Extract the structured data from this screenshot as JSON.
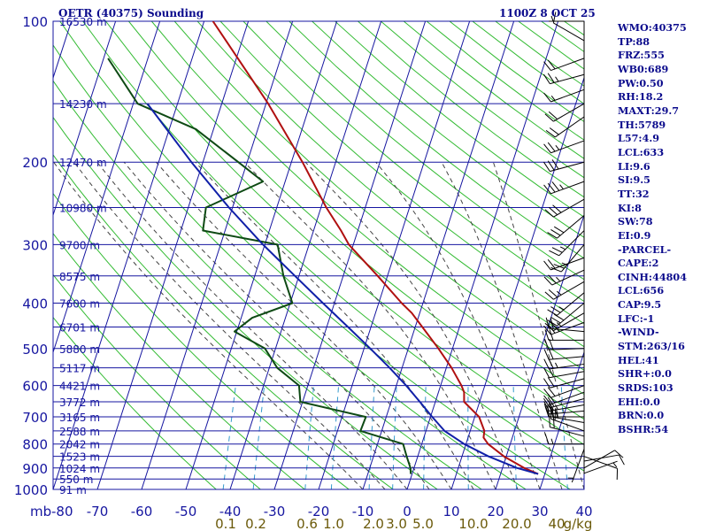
{
  "header": {
    "title": "OETR (40375) Sounding",
    "datetime": "1100Z  8 OCT 25"
  },
  "stats": [
    "WMO:40375",
    "TP:88",
    "FRZ:555",
    "WB0:689",
    "PW:0.50",
    "RH:18.2",
    "MAXT:29.7",
    "TH:5789",
    "L57:4.9",
    "LCL:633",
    "LI:9.6",
    "SI:9.5",
    "TT:32",
    "KI:8",
    "SW:78",
    "EI:0.9",
    "-PARCEL-",
    "CAPE:2",
    "CINH:44804",
    "LCL:656",
    "CAP:9.5",
    "LFC:-1",
    "-WIND-",
    "STM:263/16",
    "HEL:41",
    "SHR+:0.0",
    "SRDS:103",
    "EHI:0.0",
    "BRN:0.0",
    "BSHR:54"
  ],
  "colors": {
    "text": "#0a0a8c",
    "isobar": "#1616a0",
    "temperature": "#b01010",
    "dewpoint": "#0e4a14",
    "parcel": "#1020a8",
    "dry_adiabat": "#33bb33",
    "moist_adiabat": "#444444",
    "mixing_ratio": "#3399cc",
    "mixing_label": "#6b5a0a"
  },
  "chart_data": {
    "type": "skew-t",
    "title": "OETR (40375) Sounding",
    "pressure_unit": "mb",
    "temperature_unit": "C",
    "mixing_ratio_unit": "g/kg",
    "plim": [
      1000,
      100
    ],
    "tlim": [
      -80,
      40
    ],
    "pressure_levels": [
      100,
      200,
      300,
      400,
      500,
      600,
      700,
      800,
      900,
      1000
    ],
    "pressure_tick_labels": [
      "100",
      "200",
      "300",
      "400",
      "500",
      "600",
      "700",
      "800",
      "900",
      "1000"
    ],
    "temperature_ticks": [
      -80,
      -70,
      -60,
      -50,
      -40,
      -30,
      -20,
      -10,
      0,
      10,
      20,
      30,
      40
    ],
    "temperature_tick_labels": [
      "-80",
      "-70",
      "-60",
      "-50",
      "-40",
      "-30",
      "-20",
      "-10",
      "0",
      "10",
      "20",
      "30",
      "40"
    ],
    "x_axis_prefix": "mb",
    "height_labels": [
      {
        "p": 100,
        "text": "16530 m"
      },
      {
        "p": 150,
        "text": "14230 m"
      },
      {
        "p": 200,
        "text": "12470 m"
      },
      {
        "p": 250,
        "text": "10980 m"
      },
      {
        "p": 300,
        "text": "9700 m"
      },
      {
        "p": 350,
        "text": "8575 m"
      },
      {
        "p": 400,
        "text": "7600 m"
      },
      {
        "p": 450,
        "text": "6701 m"
      },
      {
        "p": 500,
        "text": "5880 m"
      },
      {
        "p": 550,
        "text": "5117 m"
      },
      {
        "p": 600,
        "text": "4421 m"
      },
      {
        "p": 650,
        "text": "3772 m"
      },
      {
        "p": 700,
        "text": "3165 m"
      },
      {
        "p": 750,
        "text": "2588 m"
      },
      {
        "p": 800,
        "text": "2042 m"
      },
      {
        "p": 850,
        "text": "1523 m"
      },
      {
        "p": 900,
        "text": "1024 m"
      },
      {
        "p": 950,
        "text": "550 m"
      },
      {
        "p": 1000,
        "text": "91 m"
      }
    ],
    "mixing_ratio_labels": [
      "0.1",
      "0.2",
      "0.6",
      "1.0",
      "2.0",
      "3.0",
      "5.0",
      "10.0",
      "20.0",
      "40",
      "g/kg"
    ],
    "mixing_ratios": [
      0.1,
      0.2,
      0.6,
      1.0,
      2.0,
      3.0,
      5.0,
      10.0,
      20.0,
      40.0
    ],
    "series": [
      {
        "name": "temperature",
        "points": [
          [
            927,
            28.5
          ],
          [
            900,
            24.9
          ],
          [
            850,
            19.5
          ],
          [
            800,
            15.0
          ],
          [
            775,
            13.5
          ],
          [
            750,
            13.2
          ],
          [
            700,
            11.0
          ],
          [
            650,
            6.5
          ],
          [
            620,
            5.8
          ],
          [
            600,
            4.7
          ],
          [
            550,
            1.2
          ],
          [
            500,
            -3.2
          ],
          [
            450,
            -8.4
          ],
          [
            420,
            -11.8
          ],
          [
            400,
            -14.8
          ],
          [
            350,
            -22.2
          ],
          [
            300,
            -31.0
          ],
          [
            280,
            -33.8
          ],
          [
            250,
            -38.8
          ],
          [
            200,
            -47.5
          ],
          [
            150,
            -59.5
          ],
          [
            100,
            -78.0
          ]
        ]
      },
      {
        "name": "dewpoint",
        "points": [
          [
            927,
            -0.3
          ],
          [
            900,
            -0.8
          ],
          [
            850,
            -2.5
          ],
          [
            800,
            -4.2
          ],
          [
            750,
            -14.8
          ],
          [
            700,
            -14.6
          ],
          [
            650,
            -30.5
          ],
          [
            600,
            -32.0
          ],
          [
            550,
            -38.2
          ],
          [
            500,
            -42.4
          ],
          [
            460,
            -50.5
          ],
          [
            430,
            -47.5
          ],
          [
            400,
            -39.5
          ],
          [
            350,
            -43.5
          ],
          [
            300,
            -47.1
          ],
          [
            280,
            -65.0
          ],
          [
            250,
            -66.0
          ],
          [
            220,
            -55.0
          ],
          [
            200,
            -62.0
          ],
          [
            170,
            -74.0
          ],
          [
            150,
            -89.0
          ],
          [
            120,
            -99.0
          ]
        ]
      },
      {
        "name": "parcel",
        "points": [
          [
            927,
            28.5
          ],
          [
            900,
            23.3
          ],
          [
            850,
            16.0
          ],
          [
            800,
            9.6
          ],
          [
            750,
            4.2
          ],
          [
            700,
            0.4
          ],
          [
            650,
            -3.5
          ],
          [
            600,
            -7.8
          ],
          [
            550,
            -12.8
          ],
          [
            500,
            -18.6
          ],
          [
            450,
            -25.2
          ],
          [
            400,
            -32.6
          ],
          [
            350,
            -40.9
          ],
          [
            300,
            -50.4
          ],
          [
            250,
            -60.8
          ],
          [
            200,
            -72.6
          ],
          [
            150,
            -86.8
          ]
        ]
      }
    ],
    "wind_barbs": [
      {
        "p": 924,
        "dir": 70,
        "spd": 5
      },
      {
        "p": 900,
        "dir": 60,
        "spd": 10
      },
      {
        "p": 870,
        "dir": 80,
        "spd": 10
      },
      {
        "p": 850,
        "dir": 110,
        "spd": 10
      },
      {
        "p": 820,
        "dir": 200,
        "spd": 5
      },
      {
        "p": 800,
        "dir": 270,
        "spd": 15
      },
      {
        "p": 770,
        "dir": 285,
        "spd": 20
      },
      {
        "p": 750,
        "dir": 290,
        "spd": 20
      },
      {
        "p": 720,
        "dir": 280,
        "spd": 25
      },
      {
        "p": 700,
        "dir": 270,
        "spd": 25
      },
      {
        "p": 680,
        "dir": 265,
        "spd": 25
      },
      {
        "p": 660,
        "dir": 260,
        "spd": 25
      },
      {
        "p": 640,
        "dir": 255,
        "spd": 20
      },
      {
        "p": 620,
        "dir": 250,
        "spd": 20
      },
      {
        "p": 600,
        "dir": 250,
        "spd": 20
      },
      {
        "p": 580,
        "dir": 255,
        "spd": 20
      },
      {
        "p": 560,
        "dir": 260,
        "spd": 20
      },
      {
        "p": 540,
        "dir": 262,
        "spd": 25
      },
      {
        "p": 520,
        "dir": 265,
        "spd": 20
      },
      {
        "p": 500,
        "dir": 268,
        "spd": 20
      },
      {
        "p": 480,
        "dir": 270,
        "spd": 20
      },
      {
        "p": 460,
        "dir": 275,
        "spd": 20
      },
      {
        "p": 440,
        "dir": 250,
        "spd": 25
      },
      {
        "p": 420,
        "dir": 240,
        "spd": 25
      },
      {
        "p": 400,
        "dir": 230,
        "spd": 30
      },
      {
        "p": 380,
        "dir": 230,
        "spd": 25
      },
      {
        "p": 360,
        "dir": 240,
        "spd": 25
      },
      {
        "p": 340,
        "dir": 245,
        "spd": 25
      },
      {
        "p": 320,
        "dir": 250,
        "spd": 20
      },
      {
        "p": 300,
        "dir": 220,
        "spd": 25
      },
      {
        "p": 280,
        "dir": 225,
        "spd": 25
      },
      {
        "p": 260,
        "dir": 230,
        "spd": 30
      },
      {
        "p": 240,
        "dir": 240,
        "spd": 30
      },
      {
        "p": 220,
        "dir": 250,
        "spd": 35
      },
      {
        "p": 200,
        "dir": 255,
        "spd": 30
      },
      {
        "p": 180,
        "dir": 250,
        "spd": 25
      },
      {
        "p": 160,
        "dir": 235,
        "spd": 20
      },
      {
        "p": 150,
        "dir": 240,
        "spd": 20
      },
      {
        "p": 140,
        "dir": 250,
        "spd": 15
      },
      {
        "p": 130,
        "dir": 255,
        "spd": 25
      },
      {
        "p": 120,
        "dir": 250,
        "spd": 20
      },
      {
        "p": 110,
        "dir": 300,
        "spd": 10
      },
      {
        "p": 100,
        "dir": 270,
        "spd": 5
      }
    ]
  }
}
